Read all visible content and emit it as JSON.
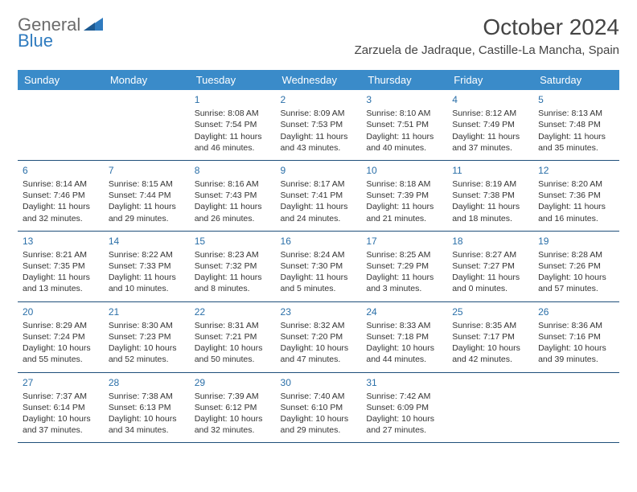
{
  "logo": {
    "text1": "General",
    "text2": "Blue",
    "triangle_color": "#2f7bbf",
    "text1_color": "#6b6b6b"
  },
  "header": {
    "month_title": "October 2024",
    "location": "Zarzuela de Jadraque, Castille-La Mancha, Spain"
  },
  "colors": {
    "header_bg": "#3a8bc9",
    "header_text": "#ffffff",
    "row_border": "#1f4f7a",
    "daynum_color": "#2a6fa8",
    "body_text": "#333333",
    "page_bg": "#ffffff"
  },
  "day_headers": [
    "Sunday",
    "Monday",
    "Tuesday",
    "Wednesday",
    "Thursday",
    "Friday",
    "Saturday"
  ],
  "weeks": [
    [
      null,
      null,
      {
        "n": "1",
        "sr": "Sunrise: 8:08 AM",
        "ss": "Sunset: 7:54 PM",
        "d1": "Daylight: 11 hours",
        "d2": "and 46 minutes."
      },
      {
        "n": "2",
        "sr": "Sunrise: 8:09 AM",
        "ss": "Sunset: 7:53 PM",
        "d1": "Daylight: 11 hours",
        "d2": "and 43 minutes."
      },
      {
        "n": "3",
        "sr": "Sunrise: 8:10 AM",
        "ss": "Sunset: 7:51 PM",
        "d1": "Daylight: 11 hours",
        "d2": "and 40 minutes."
      },
      {
        "n": "4",
        "sr": "Sunrise: 8:12 AM",
        "ss": "Sunset: 7:49 PM",
        "d1": "Daylight: 11 hours",
        "d2": "and 37 minutes."
      },
      {
        "n": "5",
        "sr": "Sunrise: 8:13 AM",
        "ss": "Sunset: 7:48 PM",
        "d1": "Daylight: 11 hours",
        "d2": "and 35 minutes."
      }
    ],
    [
      {
        "n": "6",
        "sr": "Sunrise: 8:14 AM",
        "ss": "Sunset: 7:46 PM",
        "d1": "Daylight: 11 hours",
        "d2": "and 32 minutes."
      },
      {
        "n": "7",
        "sr": "Sunrise: 8:15 AM",
        "ss": "Sunset: 7:44 PM",
        "d1": "Daylight: 11 hours",
        "d2": "and 29 minutes."
      },
      {
        "n": "8",
        "sr": "Sunrise: 8:16 AM",
        "ss": "Sunset: 7:43 PM",
        "d1": "Daylight: 11 hours",
        "d2": "and 26 minutes."
      },
      {
        "n": "9",
        "sr": "Sunrise: 8:17 AM",
        "ss": "Sunset: 7:41 PM",
        "d1": "Daylight: 11 hours",
        "d2": "and 24 minutes."
      },
      {
        "n": "10",
        "sr": "Sunrise: 8:18 AM",
        "ss": "Sunset: 7:39 PM",
        "d1": "Daylight: 11 hours",
        "d2": "and 21 minutes."
      },
      {
        "n": "11",
        "sr": "Sunrise: 8:19 AM",
        "ss": "Sunset: 7:38 PM",
        "d1": "Daylight: 11 hours",
        "d2": "and 18 minutes."
      },
      {
        "n": "12",
        "sr": "Sunrise: 8:20 AM",
        "ss": "Sunset: 7:36 PM",
        "d1": "Daylight: 11 hours",
        "d2": "and 16 minutes."
      }
    ],
    [
      {
        "n": "13",
        "sr": "Sunrise: 8:21 AM",
        "ss": "Sunset: 7:35 PM",
        "d1": "Daylight: 11 hours",
        "d2": "and 13 minutes."
      },
      {
        "n": "14",
        "sr": "Sunrise: 8:22 AM",
        "ss": "Sunset: 7:33 PM",
        "d1": "Daylight: 11 hours",
        "d2": "and 10 minutes."
      },
      {
        "n": "15",
        "sr": "Sunrise: 8:23 AM",
        "ss": "Sunset: 7:32 PM",
        "d1": "Daylight: 11 hours",
        "d2": "and 8 minutes."
      },
      {
        "n": "16",
        "sr": "Sunrise: 8:24 AM",
        "ss": "Sunset: 7:30 PM",
        "d1": "Daylight: 11 hours",
        "d2": "and 5 minutes."
      },
      {
        "n": "17",
        "sr": "Sunrise: 8:25 AM",
        "ss": "Sunset: 7:29 PM",
        "d1": "Daylight: 11 hours",
        "d2": "and 3 minutes."
      },
      {
        "n": "18",
        "sr": "Sunrise: 8:27 AM",
        "ss": "Sunset: 7:27 PM",
        "d1": "Daylight: 11 hours",
        "d2": "and 0 minutes."
      },
      {
        "n": "19",
        "sr": "Sunrise: 8:28 AM",
        "ss": "Sunset: 7:26 PM",
        "d1": "Daylight: 10 hours",
        "d2": "and 57 minutes."
      }
    ],
    [
      {
        "n": "20",
        "sr": "Sunrise: 8:29 AM",
        "ss": "Sunset: 7:24 PM",
        "d1": "Daylight: 10 hours",
        "d2": "and 55 minutes."
      },
      {
        "n": "21",
        "sr": "Sunrise: 8:30 AM",
        "ss": "Sunset: 7:23 PM",
        "d1": "Daylight: 10 hours",
        "d2": "and 52 minutes."
      },
      {
        "n": "22",
        "sr": "Sunrise: 8:31 AM",
        "ss": "Sunset: 7:21 PM",
        "d1": "Daylight: 10 hours",
        "d2": "and 50 minutes."
      },
      {
        "n": "23",
        "sr": "Sunrise: 8:32 AM",
        "ss": "Sunset: 7:20 PM",
        "d1": "Daylight: 10 hours",
        "d2": "and 47 minutes."
      },
      {
        "n": "24",
        "sr": "Sunrise: 8:33 AM",
        "ss": "Sunset: 7:18 PM",
        "d1": "Daylight: 10 hours",
        "d2": "and 44 minutes."
      },
      {
        "n": "25",
        "sr": "Sunrise: 8:35 AM",
        "ss": "Sunset: 7:17 PM",
        "d1": "Daylight: 10 hours",
        "d2": "and 42 minutes."
      },
      {
        "n": "26",
        "sr": "Sunrise: 8:36 AM",
        "ss": "Sunset: 7:16 PM",
        "d1": "Daylight: 10 hours",
        "d2": "and 39 minutes."
      }
    ],
    [
      {
        "n": "27",
        "sr": "Sunrise: 7:37 AM",
        "ss": "Sunset: 6:14 PM",
        "d1": "Daylight: 10 hours",
        "d2": "and 37 minutes."
      },
      {
        "n": "28",
        "sr": "Sunrise: 7:38 AM",
        "ss": "Sunset: 6:13 PM",
        "d1": "Daylight: 10 hours",
        "d2": "and 34 minutes."
      },
      {
        "n": "29",
        "sr": "Sunrise: 7:39 AM",
        "ss": "Sunset: 6:12 PM",
        "d1": "Daylight: 10 hours",
        "d2": "and 32 minutes."
      },
      {
        "n": "30",
        "sr": "Sunrise: 7:40 AM",
        "ss": "Sunset: 6:10 PM",
        "d1": "Daylight: 10 hours",
        "d2": "and 29 minutes."
      },
      {
        "n": "31",
        "sr": "Sunrise: 7:42 AM",
        "ss": "Sunset: 6:09 PM",
        "d1": "Daylight: 10 hours",
        "d2": "and 27 minutes."
      },
      null,
      null
    ]
  ]
}
